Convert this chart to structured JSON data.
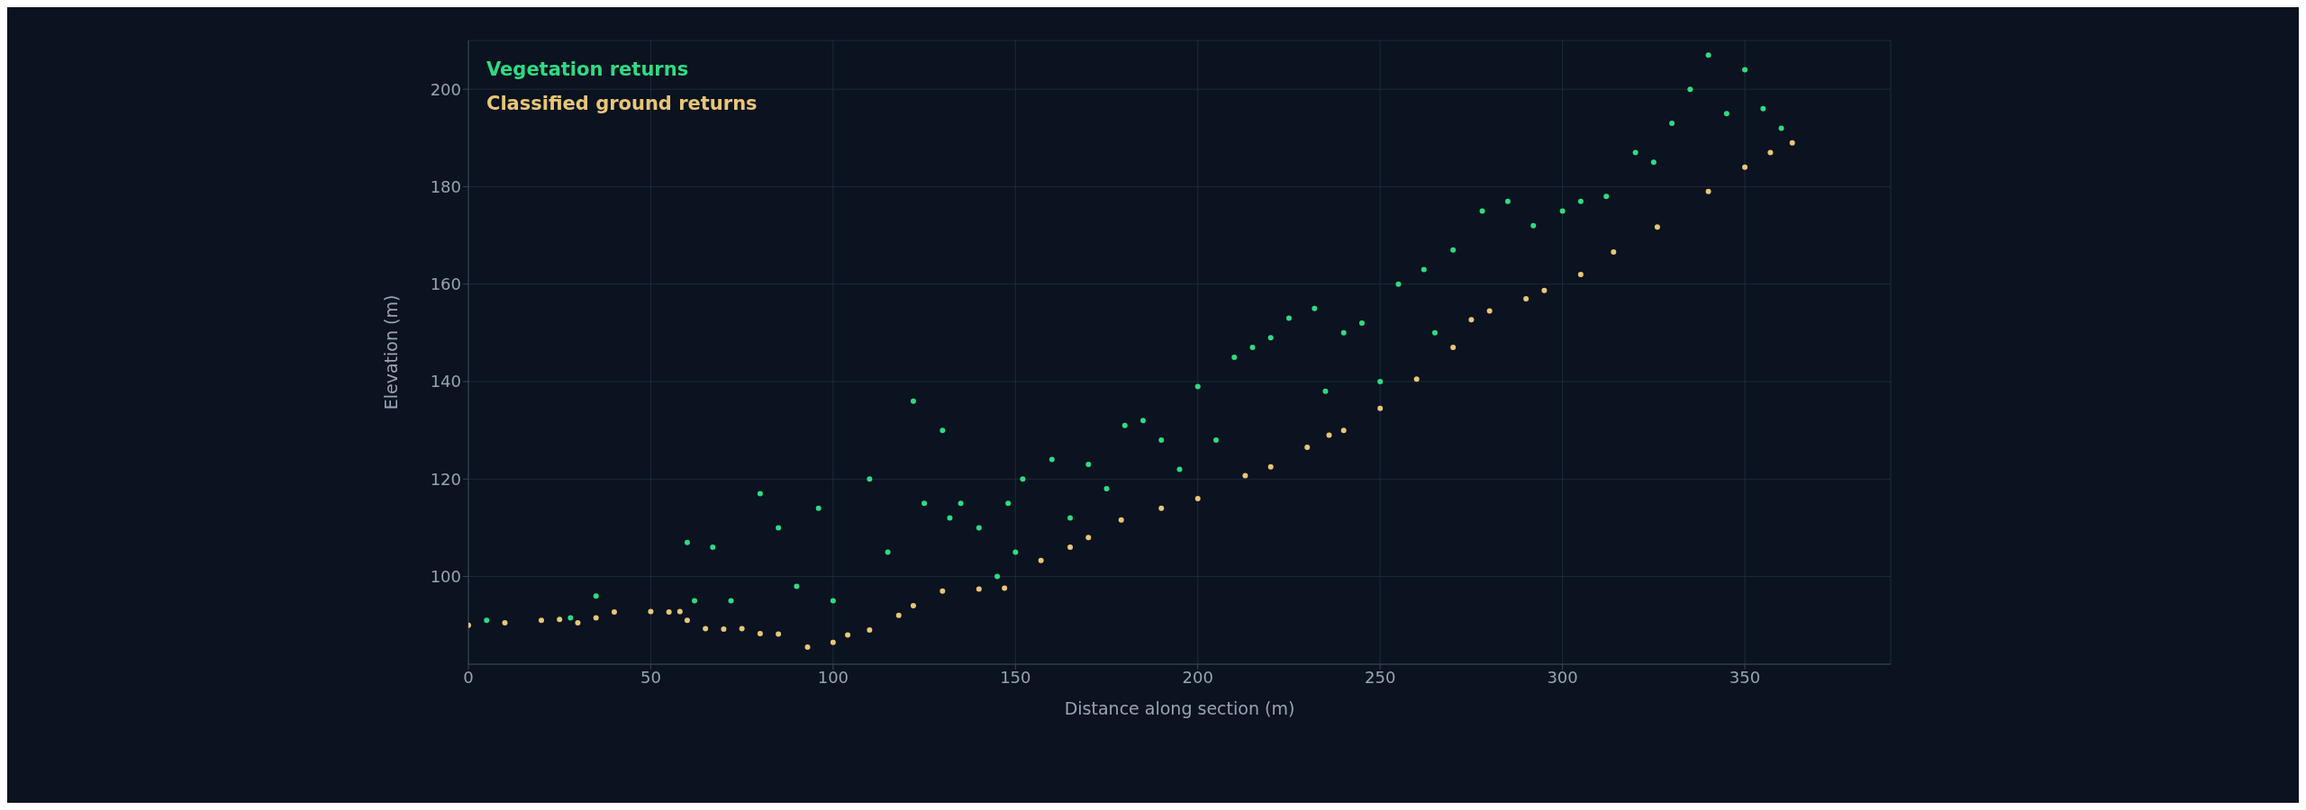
{
  "chart_data": {
    "type": "scatter",
    "xlabel": "Distance along section (m)",
    "ylabel": "Elevation (m)",
    "xlim": [
      0,
      390
    ],
    "ylim": [
      82,
      210
    ],
    "xticks": [
      0,
      50,
      100,
      150,
      200,
      250,
      300,
      350
    ],
    "yticks": [
      100,
      120,
      140,
      160,
      180,
      200
    ],
    "grid": true,
    "legend": "top left",
    "marker": "circle",
    "series": [
      {
        "name": "Vegetation returns",
        "color": "#2edb82",
        "x": [
          5,
          28,
          35,
          60,
          62,
          67,
          72,
          80,
          85,
          90,
          96,
          100,
          110,
          115,
          122,
          125,
          130,
          132,
          135,
          140,
          145,
          148,
          150,
          152,
          160,
          165,
          170,
          175,
          180,
          185,
          190,
          195,
          200,
          205,
          210,
          215,
          220,
          225,
          232,
          235,
          240,
          245,
          250,
          255,
          262,
          265,
          270,
          278,
          285,
          292,
          300,
          305,
          312,
          320,
          325,
          330,
          335,
          340,
          345,
          350,
          355,
          360
        ],
        "values": [
          91,
          91.5,
          96,
          107,
          95,
          106,
          95,
          117,
          110,
          98,
          114,
          95,
          120,
          105,
          136,
          115,
          130,
          112,
          115,
          110,
          100,
          115,
          105,
          120,
          124,
          112,
          123,
          118,
          131,
          132,
          128,
          122,
          139,
          128,
          145,
          147,
          149,
          153,
          155,
          138,
          150,
          152,
          140,
          160,
          163,
          150,
          167,
          175,
          177,
          172,
          175,
          177,
          178,
          187,
          185,
          193,
          200,
          207,
          195,
          204,
          196,
          192
        ]
      },
      {
        "name": "Classified ground returns",
        "color": "#e8c677",
        "x": [
          0,
          10,
          20,
          25,
          30,
          35,
          40,
          50,
          55,
          58,
          60,
          65,
          70,
          75,
          80,
          85,
          93,
          100,
          104,
          110,
          118,
          122,
          130,
          140,
          147,
          157,
          165,
          170,
          179,
          190,
          200,
          213,
          220,
          230,
          236,
          240,
          250,
          260,
          270,
          275,
          280,
          290,
          295,
          305,
          314,
          326,
          340,
          350,
          357,
          363
        ],
        "values": [
          90,
          90.5,
          91,
          91.2,
          90.5,
          91.5,
          92.7,
          92.8,
          92.7,
          92.8,
          91,
          89.3,
          89.2,
          89.3,
          88.3,
          88.2,
          85.5,
          86.5,
          88,
          89,
          92,
          94,
          97,
          97.4,
          97.6,
          103.3,
          106,
          108,
          111.6,
          114,
          116,
          120.7,
          122.5,
          126.5,
          129,
          130,
          134.5,
          140.5,
          147,
          152.7,
          154.5,
          157,
          158.7,
          162,
          166.6,
          171.7,
          179,
          184,
          187,
          189
        ]
      }
    ]
  }
}
